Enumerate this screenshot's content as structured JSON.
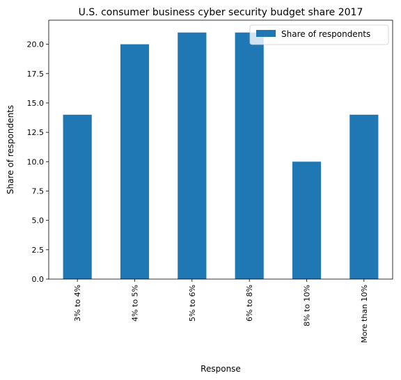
{
  "chart_data": {
    "type": "bar",
    "title": "U.S. consumer business cyber security budget share 2017",
    "xlabel": "Response",
    "ylabel": "Share of respondents",
    "categories": [
      "3% to 4%",
      "4% to 5%",
      "5% to 6%",
      "6% to 8%",
      "8% to 10%",
      "More than 10%"
    ],
    "series": [
      {
        "name": "Share of respondents",
        "values": [
          14,
          20,
          21,
          21,
          10,
          14
        ]
      }
    ],
    "ylim": [
      0,
      22.05
    ],
    "yticks": [
      "0.0",
      "2.5",
      "5.0",
      "7.5",
      "10.0",
      "12.5",
      "15.0",
      "17.5",
      "20.0"
    ],
    "grid": false,
    "legend_position": "top-right",
    "colors": {
      "bar": "#1f77b4"
    }
  }
}
